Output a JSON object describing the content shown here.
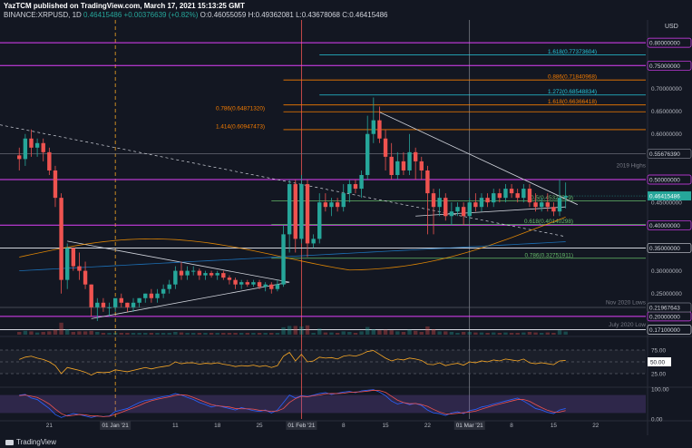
{
  "header": {
    "publisher_line": "YazTCM published on TradingView.com, March 17, 2021 15:13:25 GMT",
    "symbol": "BINANCE:XRPUSD, 1D",
    "last": "0.46415486",
    "change": "+0.00376639 (+0.82%)",
    "o": "O:0.46055059",
    "h": "H:0.49362081",
    "l": "L:0.43678068",
    "c": "C:0.46415486"
  },
  "footer": {
    "brand": "TradingView"
  },
  "colors": {
    "background": "#131722",
    "up": "#26a69a",
    "down": "#ef5350",
    "magenta": "#e040fb",
    "fib_orange": "#f57c00",
    "fib_green": "#66bb6a",
    "fib_cyan": "#26c6da",
    "rsi": "#f9a825",
    "stoch_k": "#2962ff",
    "stoch_d": "#ef5350"
  },
  "chart_data": {
    "type": "candlestick",
    "currency": "USD",
    "x_ticks": [
      "21",
      "01 Jan '21",
      "11",
      "18",
      "25",
      "01 Feb '21",
      "8",
      "15",
      "22",
      "01 Mar '21",
      "8",
      "15",
      "22"
    ],
    "y_ticks": [
      "0.80000000",
      "0.75000000",
      "0.70000000",
      "0.65000000",
      "0.60000000",
      "0.55676390",
      "0.50000000",
      "0.45000000",
      "0.40000000",
      "0.35000000",
      "0.30000000",
      "0.25000000",
      "0.21967643",
      "0.20000000",
      "0.17100000"
    ],
    "ylim": [
      0.16,
      0.85
    ],
    "last_price": 0.46415486,
    "candles": [
      {
        "d": "2020-12-16",
        "o": 0.553,
        "h": 0.57,
        "l": 0.52,
        "c": 0.545
      },
      {
        "d": "2020-12-17",
        "o": 0.545,
        "h": 0.6,
        "l": 0.53,
        "c": 0.59
      },
      {
        "d": "2020-12-18",
        "o": 0.59,
        "h": 0.61,
        "l": 0.55,
        "c": 0.57
      },
      {
        "d": "2020-12-19",
        "o": 0.57,
        "h": 0.59,
        "l": 0.55,
        "c": 0.58
      },
      {
        "d": "2020-12-20",
        "o": 0.58,
        "h": 0.59,
        "l": 0.54,
        "c": 0.56
      },
      {
        "d": "2020-12-21",
        "o": 0.56,
        "h": 0.57,
        "l": 0.51,
        "c": 0.52
      },
      {
        "d": "2020-12-22",
        "o": 0.52,
        "h": 0.53,
        "l": 0.44,
        "c": 0.46
      },
      {
        "d": "2020-12-23",
        "o": 0.46,
        "h": 0.47,
        "l": 0.25,
        "c": 0.28
      },
      {
        "d": "2020-12-24",
        "o": 0.28,
        "h": 0.36,
        "l": 0.26,
        "c": 0.35
      },
      {
        "d": "2020-12-25",
        "o": 0.35,
        "h": 0.35,
        "l": 0.3,
        "c": 0.31
      },
      {
        "d": "2020-12-26",
        "o": 0.31,
        "h": 0.34,
        "l": 0.28,
        "c": 0.3
      },
      {
        "d": "2020-12-27",
        "o": 0.3,
        "h": 0.32,
        "l": 0.26,
        "c": 0.27
      },
      {
        "d": "2020-12-28",
        "o": 0.27,
        "h": 0.27,
        "l": 0.2,
        "c": 0.22
      },
      {
        "d": "2020-12-29",
        "o": 0.22,
        "h": 0.24,
        "l": 0.19,
        "c": 0.23
      },
      {
        "d": "2020-12-30",
        "o": 0.23,
        "h": 0.24,
        "l": 0.21,
        "c": 0.22
      },
      {
        "d": "2020-12-31",
        "o": 0.22,
        "h": 0.23,
        "l": 0.2,
        "c": 0.22
      },
      {
        "d": "2021-01-01",
        "o": 0.22,
        "h": 0.24,
        "l": 0.21,
        "c": 0.24
      },
      {
        "d": "2021-01-02",
        "o": 0.24,
        "h": 0.25,
        "l": 0.22,
        "c": 0.23
      },
      {
        "d": "2021-01-03",
        "o": 0.23,
        "h": 0.23,
        "l": 0.21,
        "c": 0.22
      },
      {
        "d": "2021-01-04",
        "o": 0.22,
        "h": 0.24,
        "l": 0.21,
        "c": 0.23
      },
      {
        "d": "2021-01-05",
        "o": 0.23,
        "h": 0.24,
        "l": 0.22,
        "c": 0.24
      },
      {
        "d": "2021-01-06",
        "o": 0.24,
        "h": 0.25,
        "l": 0.23,
        "c": 0.25
      },
      {
        "d": "2021-01-07",
        "o": 0.25,
        "h": 0.26,
        "l": 0.23,
        "c": 0.24
      },
      {
        "d": "2021-01-08",
        "o": 0.24,
        "h": 0.26,
        "l": 0.23,
        "c": 0.25
      },
      {
        "d": "2021-01-09",
        "o": 0.25,
        "h": 0.27,
        "l": 0.24,
        "c": 0.26
      },
      {
        "d": "2021-01-10",
        "o": 0.26,
        "h": 0.28,
        "l": 0.25,
        "c": 0.27
      },
      {
        "d": "2021-01-11",
        "o": 0.27,
        "h": 0.31,
        "l": 0.26,
        "c": 0.3
      },
      {
        "d": "2021-01-12",
        "o": 0.3,
        "h": 0.32,
        "l": 0.28,
        "c": 0.29
      },
      {
        "d": "2021-01-13",
        "o": 0.29,
        "h": 0.31,
        "l": 0.28,
        "c": 0.3
      },
      {
        "d": "2021-01-14",
        "o": 0.3,
        "h": 0.31,
        "l": 0.29,
        "c": 0.3
      },
      {
        "d": "2021-01-15",
        "o": 0.3,
        "h": 0.305,
        "l": 0.28,
        "c": 0.29
      },
      {
        "d": "2021-01-16",
        "o": 0.29,
        "h": 0.3,
        "l": 0.28,
        "c": 0.295
      },
      {
        "d": "2021-01-17",
        "o": 0.295,
        "h": 0.3,
        "l": 0.285,
        "c": 0.29
      },
      {
        "d": "2021-01-18",
        "o": 0.29,
        "h": 0.3,
        "l": 0.28,
        "c": 0.295
      },
      {
        "d": "2021-01-19",
        "o": 0.295,
        "h": 0.3,
        "l": 0.28,
        "c": 0.285
      },
      {
        "d": "2021-01-20",
        "o": 0.285,
        "h": 0.29,
        "l": 0.27,
        "c": 0.28
      },
      {
        "d": "2021-01-21",
        "o": 0.28,
        "h": 0.285,
        "l": 0.26,
        "c": 0.27
      },
      {
        "d": "2021-01-22",
        "o": 0.27,
        "h": 0.28,
        "l": 0.26,
        "c": 0.275
      },
      {
        "d": "2021-01-23",
        "o": 0.275,
        "h": 0.28,
        "l": 0.265,
        "c": 0.27
      },
      {
        "d": "2021-01-24",
        "o": 0.27,
        "h": 0.28,
        "l": 0.265,
        "c": 0.275
      },
      {
        "d": "2021-01-25",
        "o": 0.275,
        "h": 0.28,
        "l": 0.26,
        "c": 0.265
      },
      {
        "d": "2021-01-26",
        "o": 0.265,
        "h": 0.275,
        "l": 0.255,
        "c": 0.27
      },
      {
        "d": "2021-01-27",
        "o": 0.27,
        "h": 0.275,
        "l": 0.25,
        "c": 0.26
      },
      {
        "d": "2021-01-28",
        "o": 0.26,
        "h": 0.28,
        "l": 0.255,
        "c": 0.27
      },
      {
        "d": "2021-01-29",
        "o": 0.27,
        "h": 0.4,
        "l": 0.265,
        "c": 0.38
      },
      {
        "d": "2021-01-30",
        "o": 0.38,
        "h": 0.5,
        "l": 0.34,
        "c": 0.49
      },
      {
        "d": "2021-01-31",
        "o": 0.49,
        "h": 0.5,
        "l": 0.34,
        "c": 0.37
      },
      {
        "d": "2021-02-01",
        "o": 0.37,
        "h": 0.51,
        "l": 0.36,
        "c": 0.49
      },
      {
        "d": "2021-02-02",
        "o": 0.49,
        "h": 0.5,
        "l": 0.33,
        "c": 0.36
      },
      {
        "d": "2021-02-03",
        "o": 0.36,
        "h": 0.38,
        "l": 0.35,
        "c": 0.37
      },
      {
        "d": "2021-02-04",
        "o": 0.37,
        "h": 0.47,
        "l": 0.36,
        "c": 0.45
      },
      {
        "d": "2021-02-05",
        "o": 0.45,
        "h": 0.47,
        "l": 0.43,
        "c": 0.44
      },
      {
        "d": "2021-02-06",
        "o": 0.44,
        "h": 0.46,
        "l": 0.42,
        "c": 0.45
      },
      {
        "d": "2021-02-07",
        "o": 0.45,
        "h": 0.46,
        "l": 0.43,
        "c": 0.44
      },
      {
        "d": "2021-02-08",
        "o": 0.44,
        "h": 0.49,
        "l": 0.43,
        "c": 0.47
      },
      {
        "d": "2021-02-09",
        "o": 0.47,
        "h": 0.5,
        "l": 0.45,
        "c": 0.49
      },
      {
        "d": "2021-02-10",
        "o": 0.49,
        "h": 0.5,
        "l": 0.47,
        "c": 0.48
      },
      {
        "d": "2021-02-11",
        "o": 0.48,
        "h": 0.52,
        "l": 0.46,
        "c": 0.51
      },
      {
        "d": "2021-02-12",
        "o": 0.51,
        "h": 0.64,
        "l": 0.5,
        "c": 0.6
      },
      {
        "d": "2021-02-13",
        "o": 0.6,
        "h": 0.68,
        "l": 0.58,
        "c": 0.63
      },
      {
        "d": "2021-02-14",
        "o": 0.63,
        "h": 0.66,
        "l": 0.58,
        "c": 0.59
      },
      {
        "d": "2021-02-15",
        "o": 0.59,
        "h": 0.61,
        "l": 0.52,
        "c": 0.55
      },
      {
        "d": "2021-02-16",
        "o": 0.55,
        "h": 0.58,
        "l": 0.5,
        "c": 0.51
      },
      {
        "d": "2021-02-17",
        "o": 0.51,
        "h": 0.56,
        "l": 0.5,
        "c": 0.54
      },
      {
        "d": "2021-02-18",
        "o": 0.54,
        "h": 0.56,
        "l": 0.51,
        "c": 0.52
      },
      {
        "d": "2021-02-19",
        "o": 0.52,
        "h": 0.6,
        "l": 0.51,
        "c": 0.56
      },
      {
        "d": "2021-02-20",
        "o": 0.56,
        "h": 0.57,
        "l": 0.5,
        "c": 0.54
      },
      {
        "d": "2021-02-21",
        "o": 0.54,
        "h": 0.55,
        "l": 0.5,
        "c": 0.52
      },
      {
        "d": "2021-02-22",
        "o": 0.52,
        "h": 0.53,
        "l": 0.38,
        "c": 0.47
      },
      {
        "d": "2021-02-23",
        "o": 0.47,
        "h": 0.48,
        "l": 0.38,
        "c": 0.44
      },
      {
        "d": "2021-02-24",
        "o": 0.44,
        "h": 0.48,
        "l": 0.42,
        "c": 0.46
      },
      {
        "d": "2021-02-25",
        "o": 0.46,
        "h": 0.47,
        "l": 0.41,
        "c": 0.42
      },
      {
        "d": "2021-02-26",
        "o": 0.42,
        "h": 0.45,
        "l": 0.4,
        "c": 0.43
      },
      {
        "d": "2021-02-27",
        "o": 0.43,
        "h": 0.45,
        "l": 0.42,
        "c": 0.44
      },
      {
        "d": "2021-02-28",
        "o": 0.44,
        "h": 0.45,
        "l": 0.4,
        "c": 0.42
      },
      {
        "d": "2021-03-01",
        "o": 0.42,
        "h": 0.46,
        "l": 0.41,
        "c": 0.45
      },
      {
        "d": "2021-03-02",
        "o": 0.45,
        "h": 0.47,
        "l": 0.43,
        "c": 0.44
      },
      {
        "d": "2021-03-03",
        "o": 0.44,
        "h": 0.47,
        "l": 0.43,
        "c": 0.46
      },
      {
        "d": "2021-03-04",
        "o": 0.46,
        "h": 0.47,
        "l": 0.44,
        "c": 0.45
      },
      {
        "d": "2021-03-05",
        "o": 0.45,
        "h": 0.48,
        "l": 0.44,
        "c": 0.47
      },
      {
        "d": "2021-03-06",
        "o": 0.47,
        "h": 0.48,
        "l": 0.45,
        "c": 0.46
      },
      {
        "d": "2021-03-07",
        "o": 0.46,
        "h": 0.49,
        "l": 0.45,
        "c": 0.48
      },
      {
        "d": "2021-03-08",
        "o": 0.48,
        "h": 0.49,
        "l": 0.46,
        "c": 0.47
      },
      {
        "d": "2021-03-09",
        "o": 0.47,
        "h": 0.48,
        "l": 0.45,
        "c": 0.46
      },
      {
        "d": "2021-03-10",
        "o": 0.46,
        "h": 0.49,
        "l": 0.45,
        "c": 0.48
      },
      {
        "d": "2021-03-11",
        "o": 0.48,
        "h": 0.49,
        "l": 0.44,
        "c": 0.45
      },
      {
        "d": "2021-03-12",
        "o": 0.45,
        "h": 0.47,
        "l": 0.43,
        "c": 0.44
      },
      {
        "d": "2021-03-13",
        "o": 0.44,
        "h": 0.46,
        "l": 0.43,
        "c": 0.45
      },
      {
        "d": "2021-03-14",
        "o": 0.45,
        "h": 0.47,
        "l": 0.43,
        "c": 0.44
      },
      {
        "d": "2021-03-15",
        "o": 0.44,
        "h": 0.45,
        "l": 0.42,
        "c": 0.43
      },
      {
        "d": "2021-03-16",
        "o": 0.43,
        "h": 0.5,
        "l": 0.42,
        "c": 0.46
      },
      {
        "d": "2021-03-17",
        "o": 0.46055059,
        "h": 0.49362081,
        "l": 0.43678068,
        "c": 0.46415486
      }
    ],
    "horizontal_levels": [
      {
        "value": 0.8,
        "color": "magenta",
        "label": "0.80000000"
      },
      {
        "value": 0.75,
        "color": "magenta",
        "label": "0.75000000"
      },
      {
        "value": 0.5,
        "color": "magenta",
        "label": "0.50000000"
      },
      {
        "value": 0.4,
        "color": "magenta",
        "label": "0.40000000"
      },
      {
        "value": 0.35,
        "color": "white",
        "label": "0.35000000"
      },
      {
        "value": 0.2,
        "color": "magenta",
        "label": "0.20000000"
      },
      {
        "value": 0.171,
        "color": "white",
        "label": "0.17100000"
      },
      {
        "value": 0.5567639,
        "color": "grey",
        "label": "0.55676390"
      },
      {
        "value": 0.21967643,
        "color": "grey",
        "label": "0.21967643"
      }
    ],
    "fib_levels": [
      {
        "value": 0.77373604,
        "label": "1.618(0.77373604)",
        "color": "fib_cyan"
      },
      {
        "value": 0.71840968,
        "label": "0.886(0.71840968)",
        "color": "fib_orange"
      },
      {
        "value": 0.68548834,
        "label": "1.272(0.68548834)",
        "color": "fib_cyan"
      },
      {
        "value": 0.66366418,
        "label": "1.618(0.66366418)",
        "color": "fib_orange"
      },
      {
        "value": 0.6487132,
        "label": "0.786(0.64871320)",
        "color": "fib_orange"
      },
      {
        "value": 0.60947473,
        "label": "1.414(0.60947473)",
        "color": "fib_orange"
      },
      {
        "value": 0.45327519,
        "label": "0.5(0.45327519)",
        "color": "fib_green"
      },
      {
        "value": 0.40140298,
        "label": "0.618(0.40140298)",
        "color": "fib_green"
      },
      {
        "value": 0.32751911,
        "label": "0.786(0.32751911)",
        "color": "fib_green"
      }
    ],
    "annotations": [
      {
        "text": "2019 Highs",
        "value": 0.525
      },
      {
        "text": "Nov 2020 Lows",
        "value": 0.225
      },
      {
        "text": "July 2020 Low",
        "value": 0.176
      }
    ],
    "rsi": {
      "ticks": [
        "75.00",
        "50.00",
        "25.00"
      ],
      "current_label": "50.00",
      "values": [
        55,
        60,
        62,
        58,
        55,
        50,
        42,
        25,
        38,
        35,
        32,
        28,
        22,
        28,
        27,
        28,
        33,
        31,
        29,
        32,
        35,
        38,
        35,
        38,
        40,
        42,
        50,
        46,
        48,
        48,
        45,
        47,
        46,
        48,
        45,
        43,
        40,
        42,
        41,
        43,
        40,
        42,
        38,
        42,
        62,
        70,
        52,
        66,
        50,
        52,
        60,
        58,
        59,
        56,
        62,
        64,
        62,
        66,
        72,
        74,
        66,
        58,
        52,
        56,
        54,
        58,
        56,
        53,
        45,
        44,
        48,
        42,
        45,
        47,
        43,
        50,
        48,
        52,
        50,
        54,
        52,
        56,
        54,
        52,
        56,
        48,
        46,
        48,
        46,
        44,
        52,
        53
      ]
    },
    "stoch": {
      "ticks": [
        "100.00",
        "0.00"
      ],
      "k": [
        80,
        82,
        70,
        65,
        50,
        35,
        15,
        5,
        12,
        18,
        15,
        10,
        5,
        10,
        8,
        10,
        25,
        30,
        35,
        45,
        55,
        62,
        65,
        70,
        75,
        78,
        85,
        80,
        72,
        65,
        55,
        48,
        40,
        45,
        40,
        35,
        30,
        38,
        33,
        28,
        25,
        30,
        20,
        30,
        55,
        80,
        70,
        78,
        75,
        80,
        85,
        88,
        82,
        86,
        90,
        92,
        88,
        94,
        96,
        98,
        90,
        78,
        60,
        50,
        55,
        48,
        52,
        45,
        30,
        20,
        18,
        12,
        20,
        24,
        18,
        28,
        32,
        40,
        44,
        50,
        55,
        60,
        65,
        70,
        60,
        48,
        35,
        30,
        22,
        18,
        30,
        35
      ],
      "d": [
        78,
        80,
        76,
        72,
        62,
        50,
        33,
        18,
        10,
        12,
        15,
        14,
        10,
        10,
        8,
        9,
        15,
        22,
        30,
        37,
        45,
        54,
        61,
        66,
        70,
        74,
        79,
        81,
        79,
        72,
        64,
        56,
        48,
        44,
        42,
        40,
        35,
        34,
        34,
        33,
        29,
        28,
        25,
        27,
        35,
        55,
        68,
        76,
        74,
        78,
        80,
        84,
        85,
        85,
        86,
        89,
        90,
        91,
        93,
        96,
        95,
        89,
        76,
        63,
        55,
        51,
        52,
        48,
        42,
        32,
        23,
        17,
        17,
        19,
        21,
        23,
        26,
        33,
        39,
        45,
        50,
        55,
        60,
        65,
        65,
        59,
        48,
        38,
        29,
        23,
        23,
        28
      ]
    }
  }
}
